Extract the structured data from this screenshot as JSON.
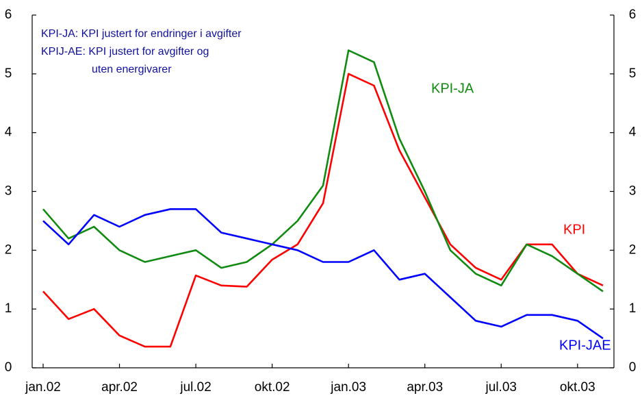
{
  "chart_data": {
    "type": "line",
    "categories": [
      "jan.02",
      null,
      null,
      "apr.02",
      null,
      null,
      "jul.02",
      null,
      null,
      "okt.02",
      null,
      null,
      "jan.03",
      null,
      null,
      "apr.03",
      null,
      null,
      "jul.03",
      null,
      null,
      "okt.03",
      null
    ],
    "series": [
      {
        "name": "KPI",
        "color": "#ff0000",
        "values": [
          1.3,
          0.83,
          1.0,
          0.55,
          0.36,
          0.36,
          1.57,
          1.4,
          1.38,
          1.84,
          2.1,
          2.8,
          5.0,
          4.8,
          3.7,
          2.9,
          2.1,
          1.7,
          1.5,
          2.1,
          2.1,
          1.6,
          1.4
        ]
      },
      {
        "name": "KPI-JA",
        "color": "#108a10",
        "values": [
          2.7,
          2.2,
          2.4,
          2.0,
          1.8,
          1.9,
          2.0,
          1.7,
          1.8,
          2.1,
          2.5,
          3.1,
          5.4,
          5.2,
          3.9,
          3.0,
          2.0,
          1.6,
          1.4,
          2.1,
          1.9,
          1.6,
          1.3
        ]
      },
      {
        "name": "KPI-JAE",
        "color": "#0000ff",
        "values": [
          2.5,
          2.1,
          2.6,
          2.4,
          2.6,
          2.7,
          2.7,
          2.3,
          2.2,
          2.1,
          2.0,
          1.8,
          1.8,
          2.0,
          1.5,
          1.6,
          1.2,
          0.8,
          0.7,
          0.9,
          0.9,
          0.8,
          0.5
        ]
      }
    ],
    "annotations": [
      "KPI-JA:   KPI justert for endringer i avgifter",
      "KPIJ-AE: KPI justert for avgifter og",
      "uten energivarer"
    ],
    "ylim": [
      0,
      6
    ],
    "yticks": [
      0,
      1,
      2,
      3,
      4,
      5,
      6
    ],
    "y2lim": [
      0,
      6
    ],
    "y2ticks": [
      0,
      1,
      2,
      3,
      4,
      5,
      6
    ],
    "grid": false
  }
}
